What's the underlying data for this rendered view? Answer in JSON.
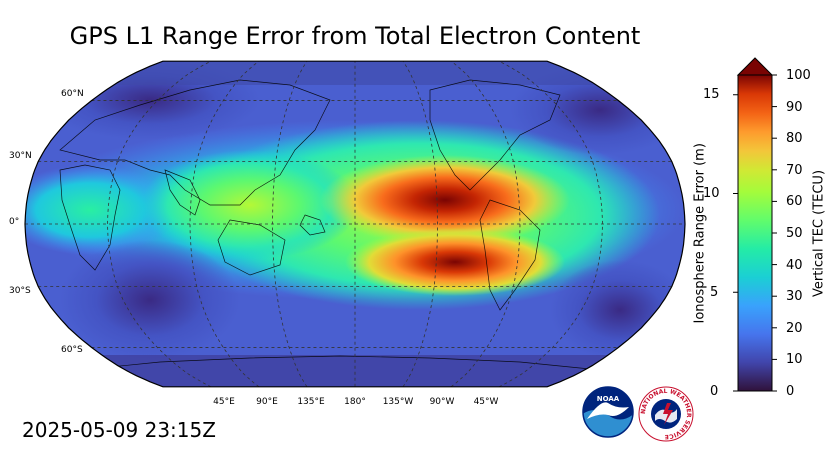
{
  "map": {
    "title": "GPS L1 Range Error from Total Electron Content",
    "timestamp": "2025-05-09 23:15Z",
    "lat_labels": [
      "60°N",
      "30°N",
      "0°",
      "30°S",
      "60°S"
    ],
    "lon_labels": [
      "45°E",
      "90°E",
      "135°E",
      "180°",
      "135°W",
      "90°W",
      "45°W"
    ],
    "projection": "robinson",
    "grid": "dashed"
  },
  "colorbar": {
    "left_axis_label": "Ionosphere Range Error (m)",
    "left_ticks": [
      "0",
      "5",
      "10",
      "15"
    ],
    "right_axis_label": "Vertical TEC (TECU)",
    "right_ticks": [
      "0",
      "10",
      "20",
      "30",
      "40",
      "50",
      "60",
      "70",
      "80",
      "90",
      "100"
    ],
    "colormap": [
      "#30123b",
      "#4454c4",
      "#4490fe",
      "#1fc8de",
      "#29efa2",
      "#7dff56",
      "#c1f334",
      "#f1ca3a",
      "#fe922a",
      "#ea4f0d",
      "#be2102",
      "#7a0403"
    ],
    "extend": "max"
  },
  "logos": {
    "noaa": "NOAA",
    "nws": "NATIONAL WEATHER SERVICE"
  }
}
